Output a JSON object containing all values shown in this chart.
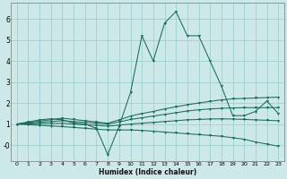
{
  "xlabel": "Humidex (Indice chaleur)",
  "bg_color": "#cce8e8",
  "grid_color": "#9fcfcf",
  "line_color": "#1a6b5a",
  "xlim": [
    -0.5,
    23.5
  ],
  "ylim": [
    -0.75,
    6.75
  ],
  "xticks": [
    0,
    1,
    2,
    3,
    4,
    5,
    6,
    7,
    8,
    9,
    10,
    11,
    12,
    13,
    14,
    15,
    16,
    17,
    18,
    19,
    20,
    21,
    22,
    23
  ],
  "yticks": [
    0,
    1,
    2,
    3,
    4,
    5,
    6
  ],
  "ytick_labels": [
    "-0",
    "1",
    "2",
    "3",
    "4",
    "5",
    "6"
  ],
  "series": [
    {
      "x": [
        0,
        1,
        2,
        3,
        4,
        5,
        6,
        7,
        8,
        9,
        10,
        11,
        12,
        13,
        14,
        15,
        16,
        17,
        18,
        19,
        20,
        21,
        22,
        23
      ],
      "y": [
        1.0,
        1.1,
        1.2,
        1.25,
        1.2,
        1.05,
        1.0,
        0.8,
        -0.45,
        0.9,
        2.5,
        5.2,
        4.0,
        5.8,
        6.35,
        5.2,
        5.2,
        4.0,
        2.8,
        1.4,
        1.4,
        1.6,
        2.1,
        1.5
      ]
    },
    {
      "x": [
        0,
        1,
        2,
        3,
        4,
        5,
        6,
        7,
        8,
        9,
        10,
        11,
        12,
        13,
        14,
        15,
        16,
        17,
        18,
        19,
        20,
        21,
        22,
        23
      ],
      "y": [
        1.0,
        1.07,
        1.14,
        1.21,
        1.28,
        1.22,
        1.16,
        1.1,
        1.04,
        1.2,
        1.38,
        1.5,
        1.6,
        1.72,
        1.82,
        1.92,
        2.0,
        2.08,
        2.15,
        2.2,
        2.22,
        2.24,
        2.26,
        2.28
      ]
    },
    {
      "x": [
        0,
        1,
        2,
        3,
        4,
        5,
        6,
        7,
        8,
        9,
        10,
        11,
        12,
        13,
        14,
        15,
        16,
        17,
        18,
        19,
        20,
        21,
        22,
        23
      ],
      "y": [
        1.0,
        1.04,
        1.08,
        1.12,
        1.16,
        1.12,
        1.08,
        1.04,
        1.0,
        1.1,
        1.22,
        1.3,
        1.38,
        1.46,
        1.54,
        1.62,
        1.68,
        1.72,
        1.75,
        1.77,
        1.78,
        1.78,
        1.78,
        1.78
      ]
    },
    {
      "x": [
        0,
        1,
        2,
        3,
        4,
        5,
        6,
        7,
        8,
        9,
        10,
        11,
        12,
        13,
        14,
        15,
        16,
        17,
        18,
        19,
        20,
        21,
        22,
        23
      ],
      "y": [
        1.0,
        1.01,
        1.02,
        1.03,
        1.04,
        1.0,
        0.97,
        0.94,
        0.9,
        0.95,
        1.0,
        1.04,
        1.08,
        1.12,
        1.16,
        1.2,
        1.22,
        1.24,
        1.25,
        1.24,
        1.22,
        1.2,
        1.18,
        1.16
      ]
    },
    {
      "x": [
        0,
        1,
        2,
        3,
        4,
        5,
        6,
        7,
        8,
        9,
        10,
        11,
        12,
        13,
        14,
        15,
        16,
        17,
        18,
        19,
        20,
        21,
        22,
        23
      ],
      "y": [
        1.0,
        0.97,
        0.94,
        0.91,
        0.88,
        0.84,
        0.8,
        0.76,
        0.72,
        0.72,
        0.72,
        0.7,
        0.66,
        0.62,
        0.58,
        0.54,
        0.5,
        0.46,
        0.42,
        0.35,
        0.28,
        0.15,
        0.05,
        -0.05
      ]
    }
  ]
}
